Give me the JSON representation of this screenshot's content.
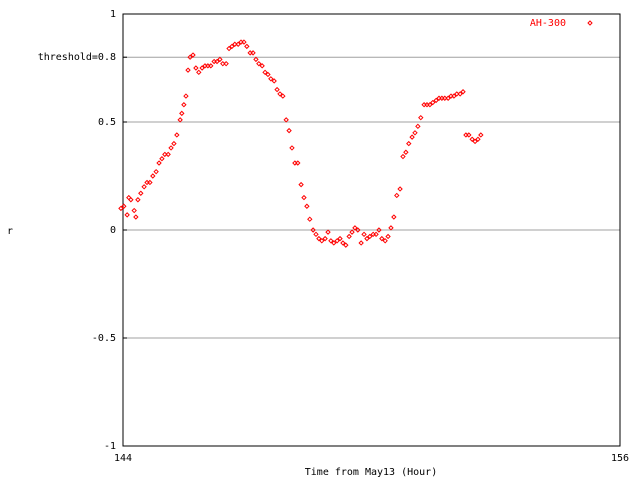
{
  "chart_data": {
    "type": "scatter",
    "xlabel": "Time from May13 (Hour)",
    "ylabel": "r",
    "xlim": [
      144,
      156
    ],
    "xticks": [
      144,
      156
    ],
    "ylim": [
      -1,
      1
    ],
    "yticks": [
      -1,
      -0.5,
      0,
      0.5,
      {
        "value": 0.8,
        "label": "threshold=0.8"
      },
      1
    ],
    "grid": true,
    "legend": "top-right",
    "series": [
      {
        "name": "AH-300",
        "color": "#ff0000",
        "x": [
          143.95,
          144.02,
          144.1,
          144.14,
          144.19,
          144.27,
          144.31,
          144.36,
          144.43,
          144.51,
          144.58,
          144.65,
          144.72,
          144.8,
          144.87,
          144.94,
          145.01,
          145.09,
          145.16,
          145.23,
          145.3,
          145.38,
          145.42,
          145.47,
          145.52,
          145.57,
          145.62,
          145.69,
          145.76,
          145.83,
          145.91,
          145.98,
          146.05,
          146.12,
          146.2,
          146.27,
          146.34,
          146.41,
          146.49,
          146.56,
          146.63,
          146.7,
          146.78,
          146.85,
          146.92,
          146.99,
          147.07,
          147.14,
          147.21,
          147.28,
          147.36,
          147.43,
          147.5,
          147.57,
          147.65,
          147.72,
          147.79,
          147.86,
          147.94,
          148.01,
          148.08,
          148.15,
          148.22,
          148.3,
          148.37,
          148.44,
          148.51,
          148.59,
          148.66,
          148.73,
          148.8,
          148.88,
          148.95,
          149.02,
          149.09,
          149.17,
          149.24,
          149.31,
          149.38,
          149.46,
          149.53,
          149.6,
          149.67,
          149.75,
          149.82,
          149.89,
          149.96,
          150.04,
          150.11,
          150.18,
          150.25,
          150.33,
          150.4,
          150.47,
          150.54,
          150.61,
          150.69,
          150.76,
          150.83,
          150.9,
          150.98,
          151.05,
          151.12,
          151.19,
          151.27,
          151.34,
          151.41,
          151.48,
          151.56,
          151.63,
          151.7,
          151.77,
          151.85,
          151.92,
          151.99,
          152.06,
          152.14,
          152.21,
          152.28,
          152.35,
          152.43,
          152.5,
          152.57,
          152.64
        ],
        "values": [
          0.1,
          0.11,
          0.07,
          0.15,
          0.14,
          0.09,
          0.06,
          0.14,
          0.17,
          0.2,
          0.22,
          0.22,
          0.25,
          0.27,
          0.31,
          0.33,
          0.35,
          0.35,
          0.38,
          0.4,
          0.44,
          0.51,
          0.54,
          0.58,
          0.62,
          0.74,
          0.8,
          0.81,
          0.75,
          0.73,
          0.75,
          0.76,
          0.76,
          0.76,
          0.78,
          0.78,
          0.79,
          0.77,
          0.77,
          0.84,
          0.85,
          0.86,
          0.86,
          0.87,
          0.87,
          0.85,
          0.82,
          0.82,
          0.79,
          0.77,
          0.76,
          0.73,
          0.72,
          0.7,
          0.69,
          0.65,
          0.63,
          0.62,
          0.51,
          0.46,
          0.38,
          0.31,
          0.31,
          0.21,
          0.15,
          0.11,
          0.05,
          0,
          -0.02,
          -0.04,
          -0.05,
          -0.04,
          -0.01,
          -0.05,
          -0.06,
          -0.05,
          -0.04,
          -0.06,
          -0.07,
          -0.03,
          -0.01,
          0.01,
          0,
          -0.06,
          -0.02,
          -0.04,
          -0.03,
          -0.02,
          -0.02,
          0,
          -0.04,
          -0.05,
          -0.03,
          0.01,
          0.06,
          0.16,
          0.19,
          0.34,
          0.36,
          0.4,
          0.43,
          0.45,
          0.48,
          0.52,
          0.58,
          0.58,
          0.58,
          0.59,
          0.6,
          0.61,
          0.61,
          0.61,
          0.61,
          0.62,
          0.62,
          0.63,
          0.63,
          0.64,
          0.44,
          0.44,
          0.42,
          0.41,
          0.42,
          0.44
        ]
      }
    ]
  }
}
